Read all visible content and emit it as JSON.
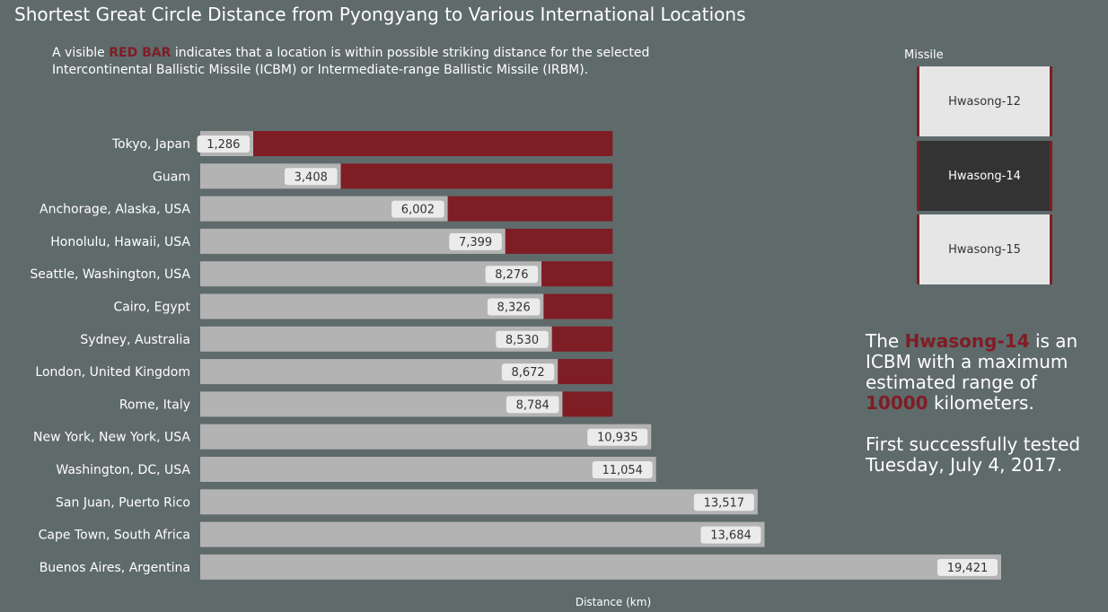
{
  "title": "Shortest Great Circle Distance from Pyongyang to Various International Locations",
  "subtitle": {
    "prefix": "A visible",
    "highlight": "RED BAR",
    "line1_rest": "indicates that a location is within possible striking distance for the selected",
    "line2": "Intercontinental Ballistic Missile (ICBM) or Intermediate-range Ballistic Missile (IRBM)."
  },
  "missile_panel": {
    "title": "Missile",
    "options": [
      {
        "label": "Hwasong-12",
        "selected": false
      },
      {
        "label": "Hwasong-14",
        "selected": true
      },
      {
        "label": "Hwasong-15",
        "selected": false
      }
    ]
  },
  "info": {
    "the": "The",
    "missile_name": "Hwasong-14",
    "line1_rest": "is an",
    "line2": "ICBM with a maximum",
    "line3": "estimated range of",
    "range_value": "10000",
    "range_unit": "kilometers.",
    "tested_line1": "First successfully tested",
    "tested_line2": "Tuesday, July 4, 2017."
  },
  "colors": {
    "background": "#5f6a6b",
    "gray_bar": "#b3b3b3",
    "red_bar": "#7f1d24",
    "label_bg": "#ebebeb"
  },
  "chart_data": {
    "type": "bar",
    "orientation": "horizontal",
    "xlabel": "Distance (km)",
    "missile_range_km": 10000,
    "categories": [
      "Tokyo, Japan",
      "Guam",
      "Anchorage, Alaska, USA",
      "Honolulu, Hawaii, USA",
      "Seattle, Washington, USA",
      "Cairo, Egypt",
      "Sydney, Australia",
      "London, United Kingdom",
      "Rome, Italy",
      "New York, New York, USA",
      "Washington, DC, USA",
      "San Juan, Puerto Rico",
      "Cape Town, South Africa",
      "Buenos Aires, Argentina"
    ],
    "values": [
      1286,
      3408,
      6002,
      7399,
      8276,
      8326,
      8530,
      8672,
      8784,
      10935,
      11054,
      13517,
      13684,
      19421
    ],
    "value_labels": [
      "1,286",
      "3,408",
      "6,002",
      "7,399",
      "8,276",
      "8,326",
      "8,530",
      "8,672",
      "8,784",
      "10,935",
      "11,054",
      "13,517",
      "13,684",
      "19,421"
    ],
    "xlim": [
      0,
      19421
    ],
    "grid": false,
    "legend": "none"
  }
}
